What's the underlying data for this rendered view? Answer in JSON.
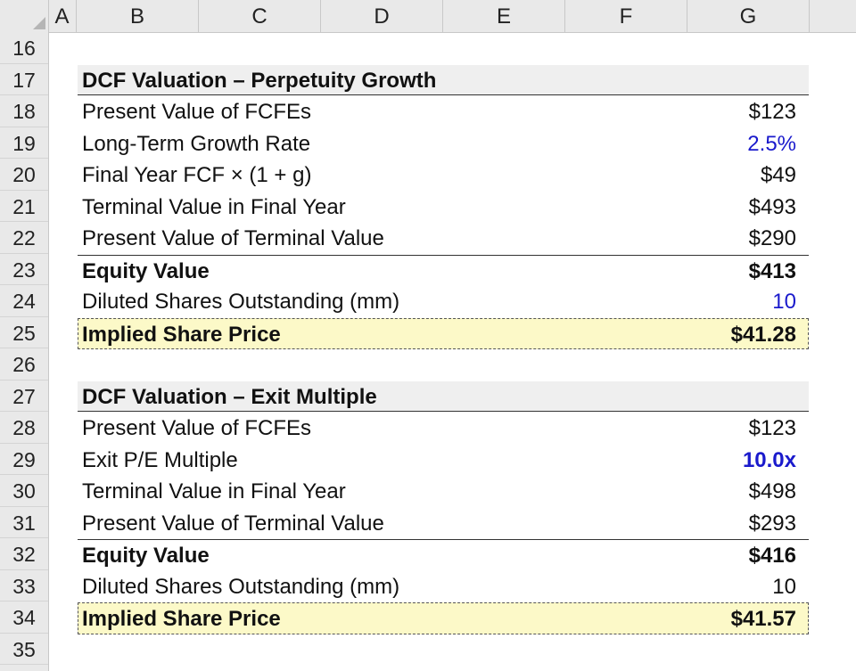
{
  "columns": [
    "A",
    "B",
    "C",
    "D",
    "E",
    "F",
    "G"
  ],
  "rows": [
    "16",
    "17",
    "18",
    "19",
    "20",
    "21",
    "22",
    "23",
    "24",
    "25",
    "26",
    "27",
    "28",
    "29",
    "30",
    "31",
    "32",
    "33",
    "34",
    "35"
  ],
  "section1": {
    "title": "DCF Valuation – Perpetuity Growth",
    "items": [
      {
        "label": "Present Value of FCFEs",
        "value": "$123"
      },
      {
        "label": "Long-Term Growth Rate",
        "value": "2.5%"
      },
      {
        "label": "Final Year FCF × (1 + g)",
        "value": "$49"
      },
      {
        "label": "Terminal Value in Final Year",
        "value": "$493"
      },
      {
        "label": "Present Value of Terminal Value",
        "value": "$290"
      },
      {
        "label": "Equity Value",
        "value": "$413"
      },
      {
        "label": "Diluted Shares Outstanding (mm)",
        "value": "10"
      },
      {
        "label": "Implied Share Price",
        "value": "$41.28"
      }
    ]
  },
  "section2": {
    "title": "DCF Valuation – Exit Multiple",
    "items": [
      {
        "label": "Present Value of FCFEs",
        "value": "$123"
      },
      {
        "label": "Exit P/E Multiple",
        "value": "10.0x"
      },
      {
        "label": "Terminal Value in Final Year",
        "value": "$498"
      },
      {
        "label": "Present Value of Terminal Value",
        "value": "$293"
      },
      {
        "label": "Equity Value",
        "value": "$416"
      },
      {
        "label": "Diluted Shares Outstanding (mm)",
        "value": "10"
      },
      {
        "label": "Implied Share Price",
        "value": "$41.57"
      }
    ]
  },
  "colors": {
    "input_blue": "#1a1acc",
    "highlight": "#fcf9c8",
    "header_gray": "#e9e9e9"
  }
}
